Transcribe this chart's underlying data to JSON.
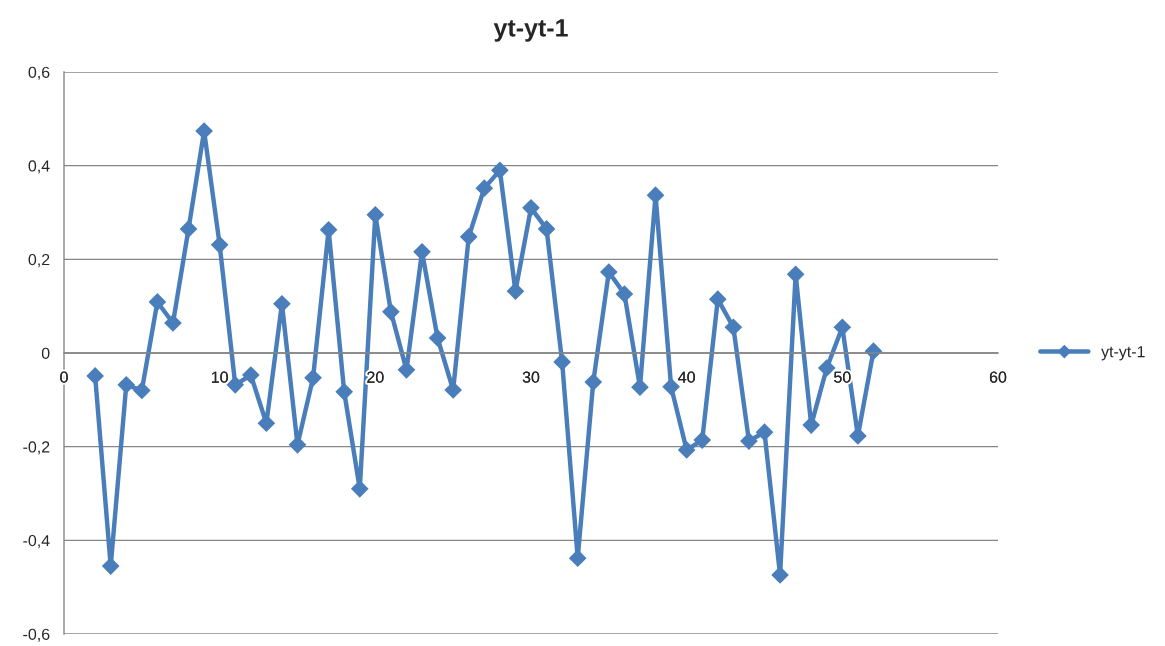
{
  "chart_data": {
    "type": "line",
    "title": "yt-yt-1",
    "x": [
      2,
      3,
      4,
      5,
      6,
      7,
      8,
      9,
      10,
      11,
      12,
      13,
      14,
      15,
      16,
      17,
      18,
      19,
      20,
      21,
      22,
      23,
      24,
      25,
      26,
      27,
      28,
      29,
      30,
      31,
      32,
      33,
      34,
      35,
      36,
      37,
      38,
      39,
      40,
      41,
      42,
      43,
      44,
      45,
      46,
      47,
      48,
      49,
      50,
      51,
      52
    ],
    "series": [
      {
        "name": "yt-yt-1",
        "color": "#4a7ebb",
        "values": [
          -0.049,
          -0.455,
          -0.068,
          -0.08,
          0.109,
          0.064,
          0.265,
          0.474,
          0.231,
          -0.068,
          -0.047,
          -0.15,
          0.105,
          -0.196,
          -0.053,
          0.263,
          -0.083,
          -0.29,
          0.295,
          0.088,
          -0.036,
          0.216,
          0.032,
          -0.079,
          0.248,
          0.352,
          0.39,
          0.132,
          0.31,
          0.265,
          -0.019,
          -0.438,
          -0.062,
          0.173,
          0.126,
          -0.073,
          0.337,
          -0.072,
          -0.207,
          -0.186,
          0.115,
          0.055,
          -0.188,
          -0.169,
          -0.474,
          0.168,
          -0.154,
          -0.032,
          0.055,
          -0.177,
          0.004
        ]
      }
    ],
    "xlim": [
      0,
      60
    ],
    "xticks": [
      0,
      10,
      20,
      30,
      40,
      50,
      60
    ],
    "ylim": [
      -0.6,
      0.6
    ],
    "yticks": [
      {
        "value": -0.6,
        "label": "-0,6"
      },
      {
        "value": -0.4,
        "label": "-0,4"
      },
      {
        "value": -0.2,
        "label": "-0,2"
      },
      0,
      {
        "value": 0.2,
        "label": "0,2"
      },
      {
        "value": 0.4,
        "label": "0,4"
      },
      {
        "value": 0.6,
        "label": "0,6"
      }
    ],
    "grid": "y",
    "legend": "right",
    "marker": "diamond",
    "line_style": "solid"
  }
}
